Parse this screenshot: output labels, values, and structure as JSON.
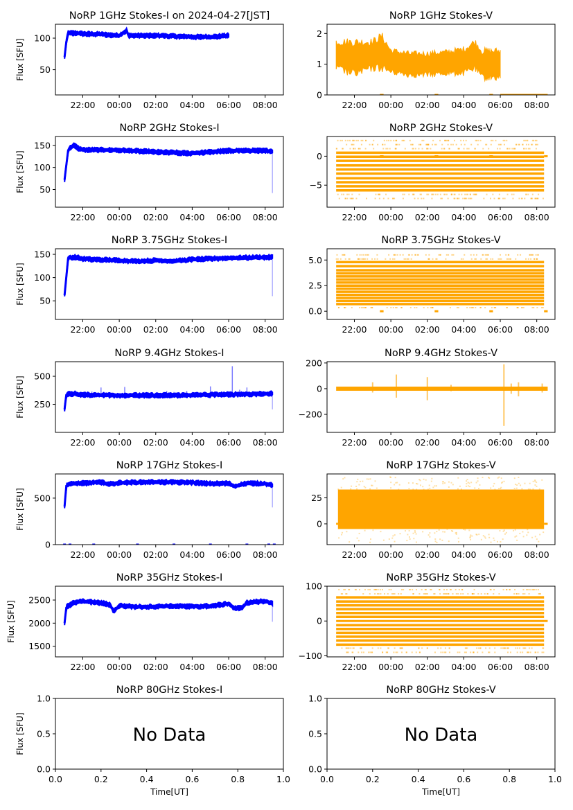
{
  "figure": {
    "xlabel_bottom": "Time[UT]",
    "no_data_text": "No Data"
  },
  "colors": {
    "stokes_i": "#0000ff",
    "stokes_v": "#ffa500"
  },
  "time_ticks": [
    "22:00",
    "00:00",
    "02:00",
    "04:00",
    "06:00",
    "08:00"
  ],
  "chart_data": [
    {
      "type": "scatter",
      "title": "NoRP 1GHz Stokes-I on 2024-04-27[JST]",
      "ylabel": "Flux [SFU]",
      "xlim_hours": [
        20.5,
        33.0
      ],
      "ylim": [
        10,
        122
      ],
      "yticks": [
        50,
        100
      ],
      "series": [
        {
          "name": "Stokes-I",
          "color": "#0000ff",
          "x_hours": [
            21.0,
            21.1,
            21.2,
            21.5,
            22.0,
            23.0,
            24.0,
            24.4,
            24.5,
            25.0,
            26.0,
            27.0,
            28.0,
            29.0,
            30.0
          ],
          "y": [
            70,
            95,
            108,
            108,
            107,
            106,
            104,
            112,
            104,
            104,
            104,
            103,
            102,
            102,
            104
          ]
        }
      ],
      "kind": "I"
    },
    {
      "type": "scatter",
      "title": "NoRP 1GHz Stokes-V",
      "ylabel": "",
      "xlim_hours": [
        20.5,
        33.0
      ],
      "ylim": [
        0,
        2.3
      ],
      "yticks": [
        0,
        1,
        2
      ],
      "series": [
        {
          "name": "Stokes-V",
          "color": "#ffa500",
          "x_hours": [
            21.0,
            22.0,
            23.0,
            23.5,
            24.0,
            25.0,
            26.0,
            27.0,
            28.0,
            28.6,
            29.0,
            30.0
          ],
          "y_center": [
            1.3,
            1.2,
            1.3,
            1.4,
            1.1,
            1.0,
            1.0,
            1.05,
            1.1,
            1.3,
            1.0,
            1.0
          ],
          "y_spread": [
            0.5,
            0.6,
            0.5,
            0.6,
            0.4,
            0.4,
            0.4,
            0.4,
            0.45,
            0.5,
            0.5,
            0.5
          ]
        }
      ],
      "zero_segments": [
        [
          23.4,
          23.6
        ],
        [
          26.4,
          26.6
        ],
        [
          29.4,
          29.6
        ],
        [
          30.0,
          32.6
        ]
      ],
      "kind": "V"
    },
    {
      "type": "scatter",
      "title": "NoRP 2GHz Stokes-I",
      "ylabel": "Flux [SFU]",
      "xlim_hours": [
        20.5,
        33.0
      ],
      "ylim": [
        10,
        170
      ],
      "yticks": [
        50,
        100,
        150
      ],
      "series": [
        {
          "name": "Stokes-I",
          "color": "#0000ff",
          "x_hours": [
            21.0,
            21.2,
            21.5,
            21.8,
            22.0,
            24.0,
            26.0,
            28.0,
            30.0,
            32.0,
            32.4
          ],
          "y": [
            72,
            140,
            151,
            142,
            140,
            139,
            135,
            132,
            138,
            138,
            137
          ]
        }
      ],
      "outlier_hours": 32.4,
      "outlier_min": 42,
      "kind": "I"
    },
    {
      "type": "scatter",
      "title": "NoRP 2GHz Stokes-V",
      "ylabel": "",
      "xlim_hours": [
        20.5,
        33.0
      ],
      "ylim": [
        -8.8,
        3.4
      ],
      "yticks": [
        -5,
        0
      ],
      "series": [
        {
          "name": "Stokes-V",
          "color": "#ffa500",
          "levels": [
            -5.9,
            -5.2,
            -4.5,
            -3.8,
            -3.0,
            -2.3,
            -1.6,
            -0.8,
            -0.1,
            0.6
          ],
          "sparse_levels": [
            -7.3,
            -6.6,
            1.3,
            2.0,
            2.7
          ]
        }
      ],
      "x_range": [
        21.0,
        32.4
      ],
      "zero_segments": [
        [
          23.4,
          23.6
        ],
        [
          26.4,
          26.6
        ],
        [
          29.4,
          29.6
        ],
        [
          32.4,
          32.6
        ]
      ],
      "kind": "V"
    },
    {
      "type": "scatter",
      "title": "NoRP 3.75GHz Stokes-I",
      "ylabel": "Flux [SFU]",
      "xlim_hours": [
        20.5,
        33.0
      ],
      "ylim": [
        10,
        162
      ],
      "yticks": [
        50,
        100,
        150
      ],
      "series": [
        {
          "name": "Stokes-I",
          "color": "#0000ff",
          "x_hours": [
            21.0,
            21.2,
            21.6,
            22.0,
            24.0,
            25.0,
            26.0,
            27.0,
            28.0,
            30.0,
            32.4
          ],
          "y": [
            62,
            143,
            144,
            140,
            137,
            135,
            137,
            135,
            139,
            142,
            144
          ]
        }
      ],
      "outlier_hours": 32.4,
      "outlier_min": 60,
      "kind": "I"
    },
    {
      "type": "scatter",
      "title": "NoRP 3.75GHz Stokes-V",
      "ylabel": "",
      "xlim_hours": [
        20.5,
        33.0
      ],
      "ylim": [
        -0.8,
        6.1
      ],
      "yticks": [
        0.0,
        2.5,
        5.0
      ],
      "ytick_labels": [
        "0.0",
        "2.5",
        "5.0"
      ],
      "series": [
        {
          "name": "Stokes-V",
          "color": "#ffa500",
          "levels": [
            0.7,
            1.0,
            1.3,
            1.6,
            1.9,
            2.2,
            2.5,
            2.8,
            3.1,
            3.4,
            3.7,
            4.0,
            4.4,
            4.8
          ],
          "sparse_levels": [
            0.35,
            5.1,
            5.5
          ]
        }
      ],
      "x_range": [
        21.0,
        32.4
      ],
      "zero_segments": [
        [
          23.4,
          23.6
        ],
        [
          26.4,
          26.6
        ],
        [
          29.4,
          29.6
        ],
        [
          32.4,
          32.6
        ]
      ],
      "kind": "V"
    },
    {
      "type": "scatter",
      "title": "NoRP 9.4GHz Stokes-I",
      "ylabel": "Flux [SFU]",
      "xlim_hours": [
        20.5,
        33.0
      ],
      "ylim": [
        0,
        630
      ],
      "yticks": [
        250,
        500
      ],
      "series": [
        {
          "name": "Stokes-I",
          "color": "#0000ff",
          "x_hours": [
            21.0,
            21.1,
            21.5,
            22.0,
            24.0,
            26.0,
            28.0,
            30.0,
            32.4
          ],
          "y": [
            205,
            340,
            345,
            335,
            330,
            330,
            332,
            338,
            345
          ]
        }
      ],
      "spikes": [
        [
          22.5,
          365
        ],
        [
          23.0,
          400
        ],
        [
          24.3,
          405
        ],
        [
          26.6,
          370
        ],
        [
          27.0,
          360
        ],
        [
          27.7,
          370
        ],
        [
          29.0,
          410
        ],
        [
          30.2,
          590
        ],
        [
          30.6,
          380
        ],
        [
          31.0,
          400
        ]
      ],
      "outlier_hours": 32.4,
      "outlier_min": 205,
      "kind": "I"
    },
    {
      "type": "scatter",
      "title": "NoRP 9.4GHz Stokes-V",
      "ylabel": "",
      "xlim_hours": [
        20.5,
        33.0
      ],
      "ylim": [
        -340,
        210
      ],
      "yticks": [
        -200,
        0,
        200
      ],
      "series": [
        {
          "name": "Stokes-V",
          "color": "#ffa500",
          "x_range": [
            21.0,
            32.6
          ],
          "y_level": 0
        }
      ],
      "spikes": [
        [
          23.0,
          50,
          -30
        ],
        [
          24.3,
          110,
          -70
        ],
        [
          26.0,
          90,
          -90
        ],
        [
          27.3,
          30,
          -20
        ],
        [
          30.2,
          190,
          -290
        ],
        [
          30.6,
          40,
          -40
        ],
        [
          31.0,
          50,
          -60
        ],
        [
          32.3,
          40,
          -30
        ]
      ],
      "kind": "V"
    },
    {
      "type": "scatter",
      "title": "NoRP 17GHz Stokes-I",
      "ylabel": "Flux [SFU]",
      "xlim_hours": [
        20.5,
        33.0
      ],
      "ylim": [
        0,
        760
      ],
      "yticks": [
        0,
        500
      ],
      "series": [
        {
          "name": "Stokes-I",
          "color": "#0000ff",
          "x_hours": [
            21.0,
            21.1,
            21.5,
            22.0,
            23.0,
            23.5,
            24.0,
            25.0,
            26.0,
            27.0,
            28.0,
            29.0,
            30.0,
            30.3,
            31.0,
            32.0,
            32.4
          ],
          "y": [
            410,
            640,
            655,
            660,
            670,
            650,
            665,
            670,
            672,
            670,
            668,
            655,
            660,
            625,
            660,
            655,
            640
          ]
        }
      ],
      "outlier_hours": 32.4,
      "outlier_min": 400,
      "zero_marks": [
        21.0,
        21.3,
        22.6,
        25.0,
        27.0,
        29.0,
        31.0,
        32.2,
        32.5
      ],
      "kind": "I"
    },
    {
      "type": "scatter",
      "title": "NoRP 17GHz Stokes-V",
      "ylabel": "",
      "xlim_hours": [
        20.5,
        33.0
      ],
      "ylim": [
        -20,
        48
      ],
      "yticks": [
        0,
        25
      ],
      "series": [
        {
          "name": "Stokes-V",
          "color": "#ffa500",
          "x_range": [
            21.1,
            32.4
          ],
          "y_min": -5,
          "y_max": 33,
          "sparse_min": -18,
          "sparse_max": 45
        }
      ],
      "zero_segments": [
        [
          21.0,
          21.1
        ],
        [
          32.4,
          32.6
        ]
      ],
      "kind": "V"
    },
    {
      "type": "scatter",
      "title": "NoRP 35GHz Stokes-I",
      "ylabel": "Flux [SFU]",
      "xlim_hours": [
        20.5,
        33.0
      ],
      "ylim": [
        1270,
        2800
      ],
      "yticks": [
        1500,
        2000,
        2500
      ],
      "series": [
        {
          "name": "Stokes-I",
          "color": "#0000ff",
          "x_hours": [
            21.0,
            21.1,
            21.5,
            22.0,
            23.0,
            23.5,
            23.7,
            24.0,
            25.0,
            26.0,
            27.0,
            28.0,
            29.0,
            30.0,
            30.3,
            30.7,
            31.0,
            32.0,
            32.4
          ],
          "y": [
            2000,
            2350,
            2440,
            2470,
            2440,
            2400,
            2250,
            2380,
            2350,
            2360,
            2370,
            2360,
            2370,
            2420,
            2320,
            2330,
            2440,
            2480,
            2420
          ]
        }
      ],
      "outlier_hours": 32.4,
      "outlier_min": 2030,
      "kind": "I"
    },
    {
      "type": "scatter",
      "title": "NoRP 35GHz Stokes-V",
      "ylabel": "",
      "xlim_hours": [
        20.5,
        33.0
      ],
      "ylim": [
        -103,
        100
      ],
      "yticks": [
        -100,
        0,
        100
      ],
      "series": [
        {
          "name": "Stokes-V",
          "color": "#ffa500",
          "levels": [
            -68,
            -56,
            -45,
            -34,
            -23,
            -12,
            12,
            23,
            34,
            45,
            56,
            68
          ],
          "sparse_levels": [
            -90,
            -78,
            78,
            90
          ]
        }
      ],
      "x_range": [
        21.0,
        32.4
      ],
      "zero_segments": [
        [
          21.0,
          32.6
        ]
      ],
      "kind": "V"
    },
    {
      "type": "empty",
      "title": "NoRP 80GHz Stokes-I",
      "ylabel": "Flux [SFU]",
      "xlabel": "Time[UT]",
      "xlim": [
        0,
        1
      ],
      "ylim": [
        0,
        1
      ],
      "xticks": [
        "0.0",
        "0.2",
        "0.4",
        "0.6",
        "0.8",
        "1.0"
      ],
      "yticks": [
        "0.0",
        "0.5",
        "1.0"
      ],
      "annotation": "No Data"
    },
    {
      "type": "empty",
      "title": "NoRP 80GHz Stokes-V",
      "ylabel": "",
      "xlabel": "Time[UT]",
      "xlim": [
        0,
        1
      ],
      "ylim": [
        0,
        1
      ],
      "xticks": [
        "0.0",
        "0.2",
        "0.4",
        "0.6",
        "0.8",
        "1.0"
      ],
      "yticks": [
        "0.0",
        "0.5",
        "1.0"
      ],
      "annotation": "No Data"
    }
  ]
}
